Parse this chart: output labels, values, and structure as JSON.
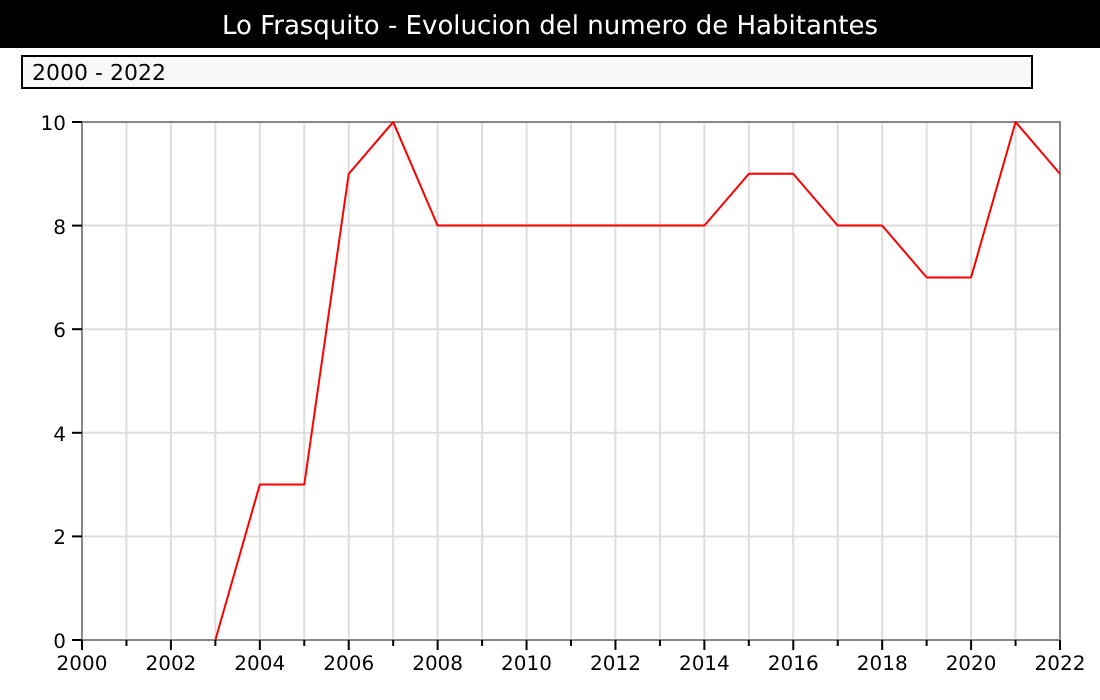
{
  "chart_data": {
    "type": "line",
    "title": "Lo Frasquito - Evolucion del numero de Habitantes",
    "annotations": [
      "2000 - 2022"
    ],
    "x": [
      2003,
      2004,
      2005,
      2006,
      2007,
      2008,
      2009,
      2010,
      2011,
      2012,
      2013,
      2014,
      2015,
      2016,
      2017,
      2018,
      2019,
      2020,
      2021,
      2022
    ],
    "series": [
      {
        "color": "#ff0000",
        "values": [
          0,
          3,
          3,
          9,
          10,
          8,
          8,
          8,
          8,
          8,
          8,
          8,
          9,
          9,
          8,
          8,
          7,
          7,
          10,
          9
        ]
      }
    ],
    "xlim": [
      2000,
      2022
    ],
    "xticks": [
      2000,
      {
        "value": 2001,
        "label": null
      },
      2002,
      {
        "value": 2003,
        "label": null
      },
      2004,
      {
        "value": 2005,
        "label": null
      },
      2006,
      {
        "value": 2007,
        "label": null
      },
      2008,
      {
        "value": 2009,
        "label": null
      },
      2010,
      {
        "value": 2011,
        "label": null
      },
      2012,
      {
        "value": 2013,
        "label": null
      },
      2014,
      {
        "value": 2015,
        "label": null
      },
      2016,
      {
        "value": 2017,
        "label": null
      },
      2018,
      {
        "value": 2019,
        "label": null
      },
      2020,
      {
        "value": 2021,
        "label": null
      },
      2022
    ],
    "ylim": [
      0,
      10
    ],
    "yticks": [
      0,
      2,
      4,
      6,
      8,
      10
    ],
    "grid": true
  }
}
